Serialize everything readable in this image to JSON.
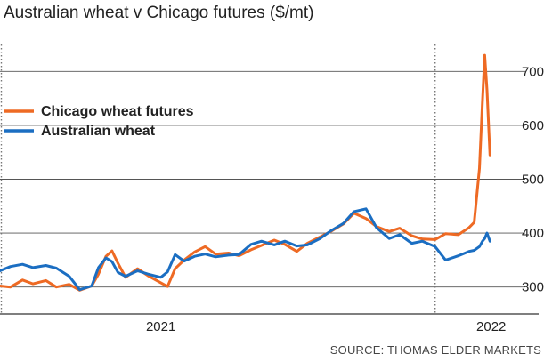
{
  "title": "Australian wheat v Chicago futures ($/mt)",
  "source": "SOURCE: THOMAS ELDER MARKETS",
  "chart_data": {
    "type": "line",
    "title": "Australian wheat v Chicago futures ($/mt)",
    "xlabel": "",
    "ylabel": "",
    "x_range": [
      "2020-06-01",
      "2022-05-01"
    ],
    "ylim": [
      250,
      750
    ],
    "y_ticks": [
      300,
      400,
      500,
      600,
      700
    ],
    "x_tick_labels": [
      {
        "label": "2021",
        "date": "2021-01-01"
      },
      {
        "label": "2022",
        "date": "2022-01-01"
      }
    ],
    "vertical_year_lines": [
      "2020-06-01",
      "2022-01-01"
    ],
    "grid": "horizontal",
    "legend_position": "top-left",
    "series": [
      {
        "name": "Chicago wheat futures",
        "color": "#ee6a24",
        "points": [
          [
            "2020-06-01",
            302
          ],
          [
            "2020-06-15",
            300
          ],
          [
            "2020-07-01",
            313
          ],
          [
            "2020-07-15",
            306
          ],
          [
            "2020-08-01",
            312
          ],
          [
            "2020-08-15",
            300
          ],
          [
            "2020-09-01",
            305
          ],
          [
            "2020-09-15",
            294
          ],
          [
            "2020-10-01",
            302
          ],
          [
            "2020-10-10",
            324
          ],
          [
            "2020-10-20",
            357
          ],
          [
            "2020-10-28",
            367
          ],
          [
            "2020-11-05",
            344
          ],
          [
            "2020-11-15",
            318
          ],
          [
            "2020-12-01",
            334
          ],
          [
            "2020-12-15",
            321
          ],
          [
            "2021-01-01",
            308
          ],
          [
            "2021-01-10",
            301
          ],
          [
            "2021-01-20",
            334
          ],
          [
            "2021-02-01",
            350
          ],
          [
            "2021-02-15",
            365
          ],
          [
            "2021-03-01",
            375
          ],
          [
            "2021-03-15",
            361
          ],
          [
            "2021-04-01",
            363
          ],
          [
            "2021-04-15",
            358
          ],
          [
            "2021-05-01",
            369
          ],
          [
            "2021-05-15",
            377
          ],
          [
            "2021-06-01",
            387
          ],
          [
            "2021-06-15",
            379
          ],
          [
            "2021-07-01",
            366
          ],
          [
            "2021-07-15",
            381
          ],
          [
            "2021-08-01",
            393
          ],
          [
            "2021-08-15",
            403
          ],
          [
            "2021-09-01",
            417
          ],
          [
            "2021-09-15",
            437
          ],
          [
            "2021-10-01",
            427
          ],
          [
            "2021-10-15",
            412
          ],
          [
            "2021-11-01",
            403
          ],
          [
            "2021-11-15",
            409
          ],
          [
            "2021-12-01",
            395
          ],
          [
            "2021-12-15",
            389
          ],
          [
            "2022-01-01",
            388
          ],
          [
            "2022-01-15",
            399
          ],
          [
            "2022-02-01",
            397
          ],
          [
            "2022-02-15",
            410
          ],
          [
            "2022-02-22",
            420
          ],
          [
            "2022-03-01",
            520
          ],
          [
            "2022-03-05",
            645
          ],
          [
            "2022-03-08",
            730
          ],
          [
            "2022-03-11",
            665
          ],
          [
            "2022-03-15",
            545
          ]
        ]
      },
      {
        "name": "Australian wheat",
        "color": "#1b6ec2",
        "points": [
          [
            "2020-06-01",
            330
          ],
          [
            "2020-06-15",
            338
          ],
          [
            "2020-07-01",
            342
          ],
          [
            "2020-07-15",
            336
          ],
          [
            "2020-08-01",
            340
          ],
          [
            "2020-08-15",
            335
          ],
          [
            "2020-09-01",
            320
          ],
          [
            "2020-09-15",
            295
          ],
          [
            "2020-10-01",
            302
          ],
          [
            "2020-10-10",
            336
          ],
          [
            "2020-10-20",
            354
          ],
          [
            "2020-10-28",
            347
          ],
          [
            "2020-11-05",
            327
          ],
          [
            "2020-11-15",
            320
          ],
          [
            "2020-12-01",
            330
          ],
          [
            "2020-12-15",
            324
          ],
          [
            "2021-01-01",
            318
          ],
          [
            "2021-01-10",
            328
          ],
          [
            "2021-01-20",
            360
          ],
          [
            "2021-02-01",
            348
          ],
          [
            "2021-02-15",
            357
          ],
          [
            "2021-03-01",
            361
          ],
          [
            "2021-03-15",
            356
          ],
          [
            "2021-04-01",
            359
          ],
          [
            "2021-04-15",
            360
          ],
          [
            "2021-05-01",
            379
          ],
          [
            "2021-05-15",
            385
          ],
          [
            "2021-06-01",
            378
          ],
          [
            "2021-06-15",
            385
          ],
          [
            "2021-07-01",
            376
          ],
          [
            "2021-07-15",
            378
          ],
          [
            "2021-08-01",
            390
          ],
          [
            "2021-08-15",
            404
          ],
          [
            "2021-09-01",
            418
          ],
          [
            "2021-09-15",
            440
          ],
          [
            "2021-10-01",
            445
          ],
          [
            "2021-10-15",
            410
          ],
          [
            "2021-11-01",
            390
          ],
          [
            "2021-11-15",
            397
          ],
          [
            "2021-12-01",
            381
          ],
          [
            "2021-12-15",
            385
          ],
          [
            "2022-01-01",
            375
          ],
          [
            "2022-01-15",
            350
          ],
          [
            "2022-02-01",
            358
          ],
          [
            "2022-02-15",
            366
          ],
          [
            "2022-02-22",
            368
          ],
          [
            "2022-03-01",
            375
          ],
          [
            "2022-03-05",
            385
          ],
          [
            "2022-03-08",
            390
          ],
          [
            "2022-03-11",
            400
          ],
          [
            "2022-03-15",
            385
          ]
        ]
      }
    ]
  }
}
